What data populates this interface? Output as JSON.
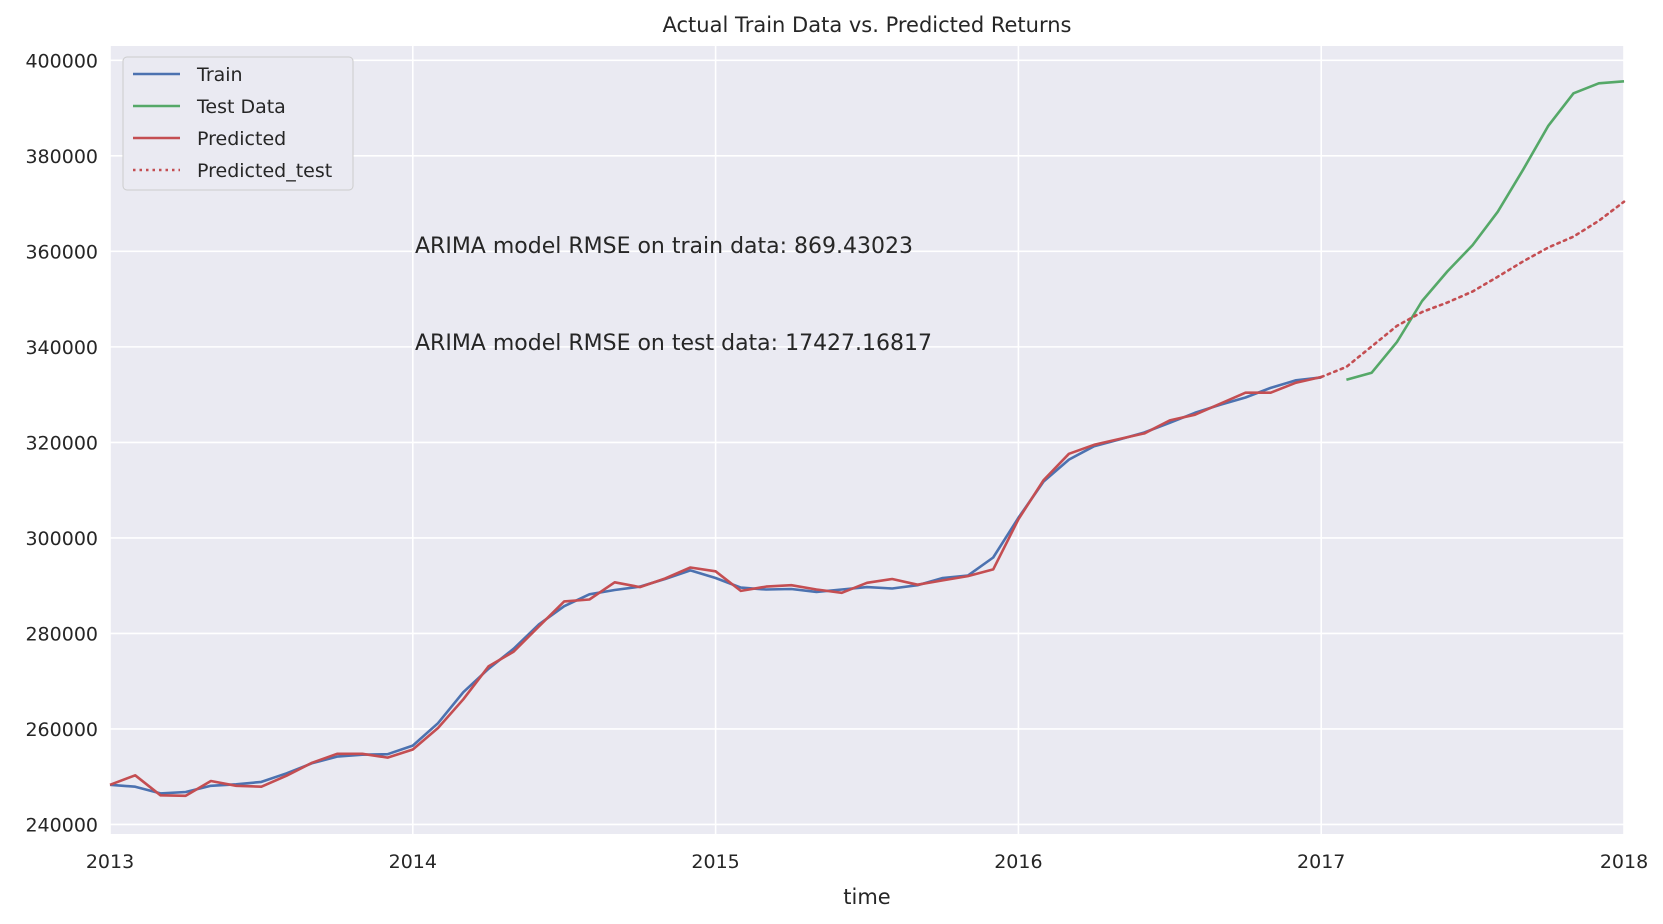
{
  "chart_data": {
    "type": "line",
    "title": "Actual Train Data vs. Predicted Returns",
    "xlabel": "time",
    "ylabel": "",
    "xlim": [
      "2013-01",
      "2018-01"
    ],
    "ylim": [
      238000,
      403000
    ],
    "x_ticks": [
      "2013",
      "2014",
      "2015",
      "2016",
      "2017",
      "2018"
    ],
    "y_ticks": [
      240000,
      260000,
      280000,
      300000,
      320000,
      340000,
      360000,
      380000,
      400000
    ],
    "grid": true,
    "legend_position": "top-left",
    "annotations": [
      "ARIMA model RMSE on train data: 869.43023",
      "ARIMA model RMSE on test data: 17427.16817"
    ],
    "colors": {
      "background": "#eaeaf2",
      "grid": "#ffffff",
      "train": "#4c72b0",
      "test": "#55a868",
      "predicted": "#c44e52"
    },
    "series": [
      {
        "name": "Train",
        "style": "solid",
        "color": "#4c72b0",
        "x": [
          "2013-01",
          "2013-02",
          "2013-03",
          "2013-04",
          "2013-05",
          "2013-06",
          "2013-07",
          "2013-08",
          "2013-09",
          "2013-10",
          "2013-11",
          "2013-12",
          "2014-01",
          "2014-02",
          "2014-03",
          "2014-04",
          "2014-05",
          "2014-06",
          "2014-07",
          "2014-08",
          "2014-09",
          "2014-10",
          "2014-11",
          "2014-12",
          "2015-01",
          "2015-02",
          "2015-03",
          "2015-04",
          "2015-05",
          "2015-06",
          "2015-07",
          "2015-08",
          "2015-09",
          "2015-10",
          "2015-11",
          "2015-12",
          "2016-01",
          "2016-02",
          "2016-03",
          "2016-04",
          "2016-05",
          "2016-06",
          "2016-07",
          "2016-08",
          "2016-09",
          "2016-10",
          "2016-11",
          "2016-12",
          "2017-01"
        ],
        "values": [
          248300,
          247900,
          246500,
          246800,
          248100,
          248400,
          248900,
          250700,
          252800,
          254200,
          254600,
          254700,
          256500,
          261200,
          267700,
          272600,
          276800,
          281900,
          285700,
          288200,
          289100,
          289800,
          291400,
          293200,
          291600,
          289600,
          289200,
          289300,
          288700,
          289200,
          289700,
          289400,
          290100,
          291600,
          292100,
          295900,
          304200,
          311800,
          316400,
          319200,
          320600,
          322100,
          324100,
          326200,
          327900,
          329400,
          331400,
          333000,
          333600
        ]
      },
      {
        "name": "Test Data",
        "style": "solid",
        "color": "#55a868",
        "x": [
          "2017-02",
          "2017-03",
          "2017-04",
          "2017-05",
          "2017-06",
          "2017-07",
          "2017-08",
          "2017-09",
          "2017-10",
          "2017-11",
          "2017-12",
          "2018-01"
        ],
        "values": [
          333100,
          334600,
          341000,
          349600,
          355800,
          361300,
          368300,
          377100,
          386300,
          393100,
          395200,
          395600
        ]
      },
      {
        "name": "Predicted",
        "style": "solid",
        "color": "#c44e52",
        "x": [
          "2013-01",
          "2013-02",
          "2013-03",
          "2013-04",
          "2013-05",
          "2013-06",
          "2013-07",
          "2013-08",
          "2013-09",
          "2013-10",
          "2013-11",
          "2013-12",
          "2014-01",
          "2014-02",
          "2014-03",
          "2014-04",
          "2014-05",
          "2014-06",
          "2014-07",
          "2014-08",
          "2014-09",
          "2014-10",
          "2014-11",
          "2014-12",
          "2015-01",
          "2015-02",
          "2015-03",
          "2015-04",
          "2015-05",
          "2015-06",
          "2015-07",
          "2015-08",
          "2015-09",
          "2015-10",
          "2015-11",
          "2015-12",
          "2016-01",
          "2016-02",
          "2016-03",
          "2016-04",
          "2016-05",
          "2016-06",
          "2016-07",
          "2016-08",
          "2016-09",
          "2016-10",
          "2016-11",
          "2016-12",
          "2017-01"
        ],
        "values": [
          248300,
          250300,
          246100,
          246000,
          249100,
          248100,
          247900,
          250200,
          252900,
          254800,
          254800,
          254000,
          255700,
          260200,
          266200,
          273100,
          276200,
          281500,
          286700,
          287100,
          290700,
          289700,
          291500,
          293800,
          293000,
          288900,
          289800,
          290100,
          289200,
          288500,
          290600,
          291400,
          290200,
          291100,
          292000,
          293400,
          303900,
          312100,
          317600,
          319500,
          320700,
          321900,
          324600,
          325800,
          328100,
          330400,
          330400,
          332500,
          333700
        ]
      },
      {
        "name": "Predicted_test",
        "style": "dotted",
        "color": "#c44e52",
        "x": [
          "2017-01",
          "2017-02",
          "2017-03",
          "2017-04",
          "2017-05",
          "2017-06",
          "2017-07",
          "2017-08",
          "2017-09",
          "2017-10",
          "2017-11",
          "2017-12",
          "2018-01"
        ],
        "values": [
          333700,
          335800,
          340100,
          344400,
          347300,
          349300,
          351600,
          354700,
          357900,
          360800,
          363100,
          366400,
          370400
        ]
      }
    ]
  }
}
